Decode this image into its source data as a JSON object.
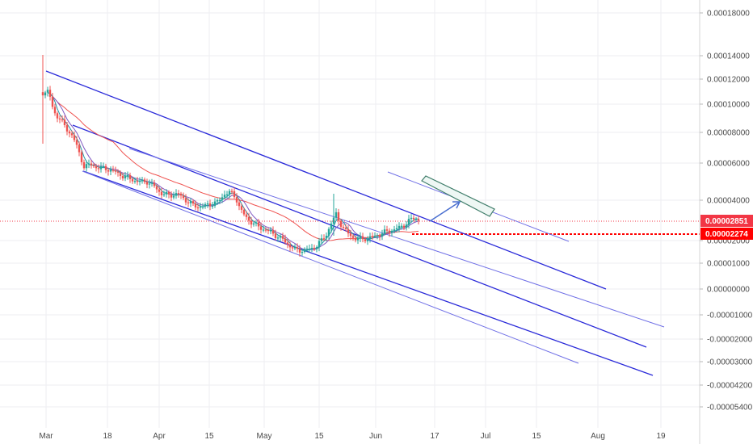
{
  "chart_data": {
    "type": "candlestick",
    "title": "",
    "x_labels": [
      "Mar",
      "18",
      "Apr",
      "15",
      "May",
      "15",
      "Jun",
      "17",
      "Jul",
      "15",
      "Aug",
      "19"
    ],
    "y_ticks": [
      "0.00018000",
      "0.00014000",
      "0.00012000",
      "0.00010000",
      "0.00008000",
      "0.00006000",
      "0.00004000",
      "0.00002000",
      "0.00001000",
      "0.00000000",
      "-0.00001000",
      "-0.00002000",
      "-0.00003000",
      "-0.00004200",
      "-0.00005400"
    ],
    "last_price_label": "0.00002851",
    "ref_price_label": "0.00002274",
    "grid": true,
    "colors": {
      "up": "#26a69a",
      "down": "#ef5350",
      "channel_main": "#2a2ad9",
      "channel_light": "#6f6fe6",
      "ma_fast": "#2196a6",
      "ma_mid": "#7e57c2",
      "ma_slow": "#ef5350",
      "last_price": "#f23645",
      "ref_price": "#ff0000",
      "arrow": "#4a6fd0",
      "target_box": "#3f7d6a"
    }
  }
}
